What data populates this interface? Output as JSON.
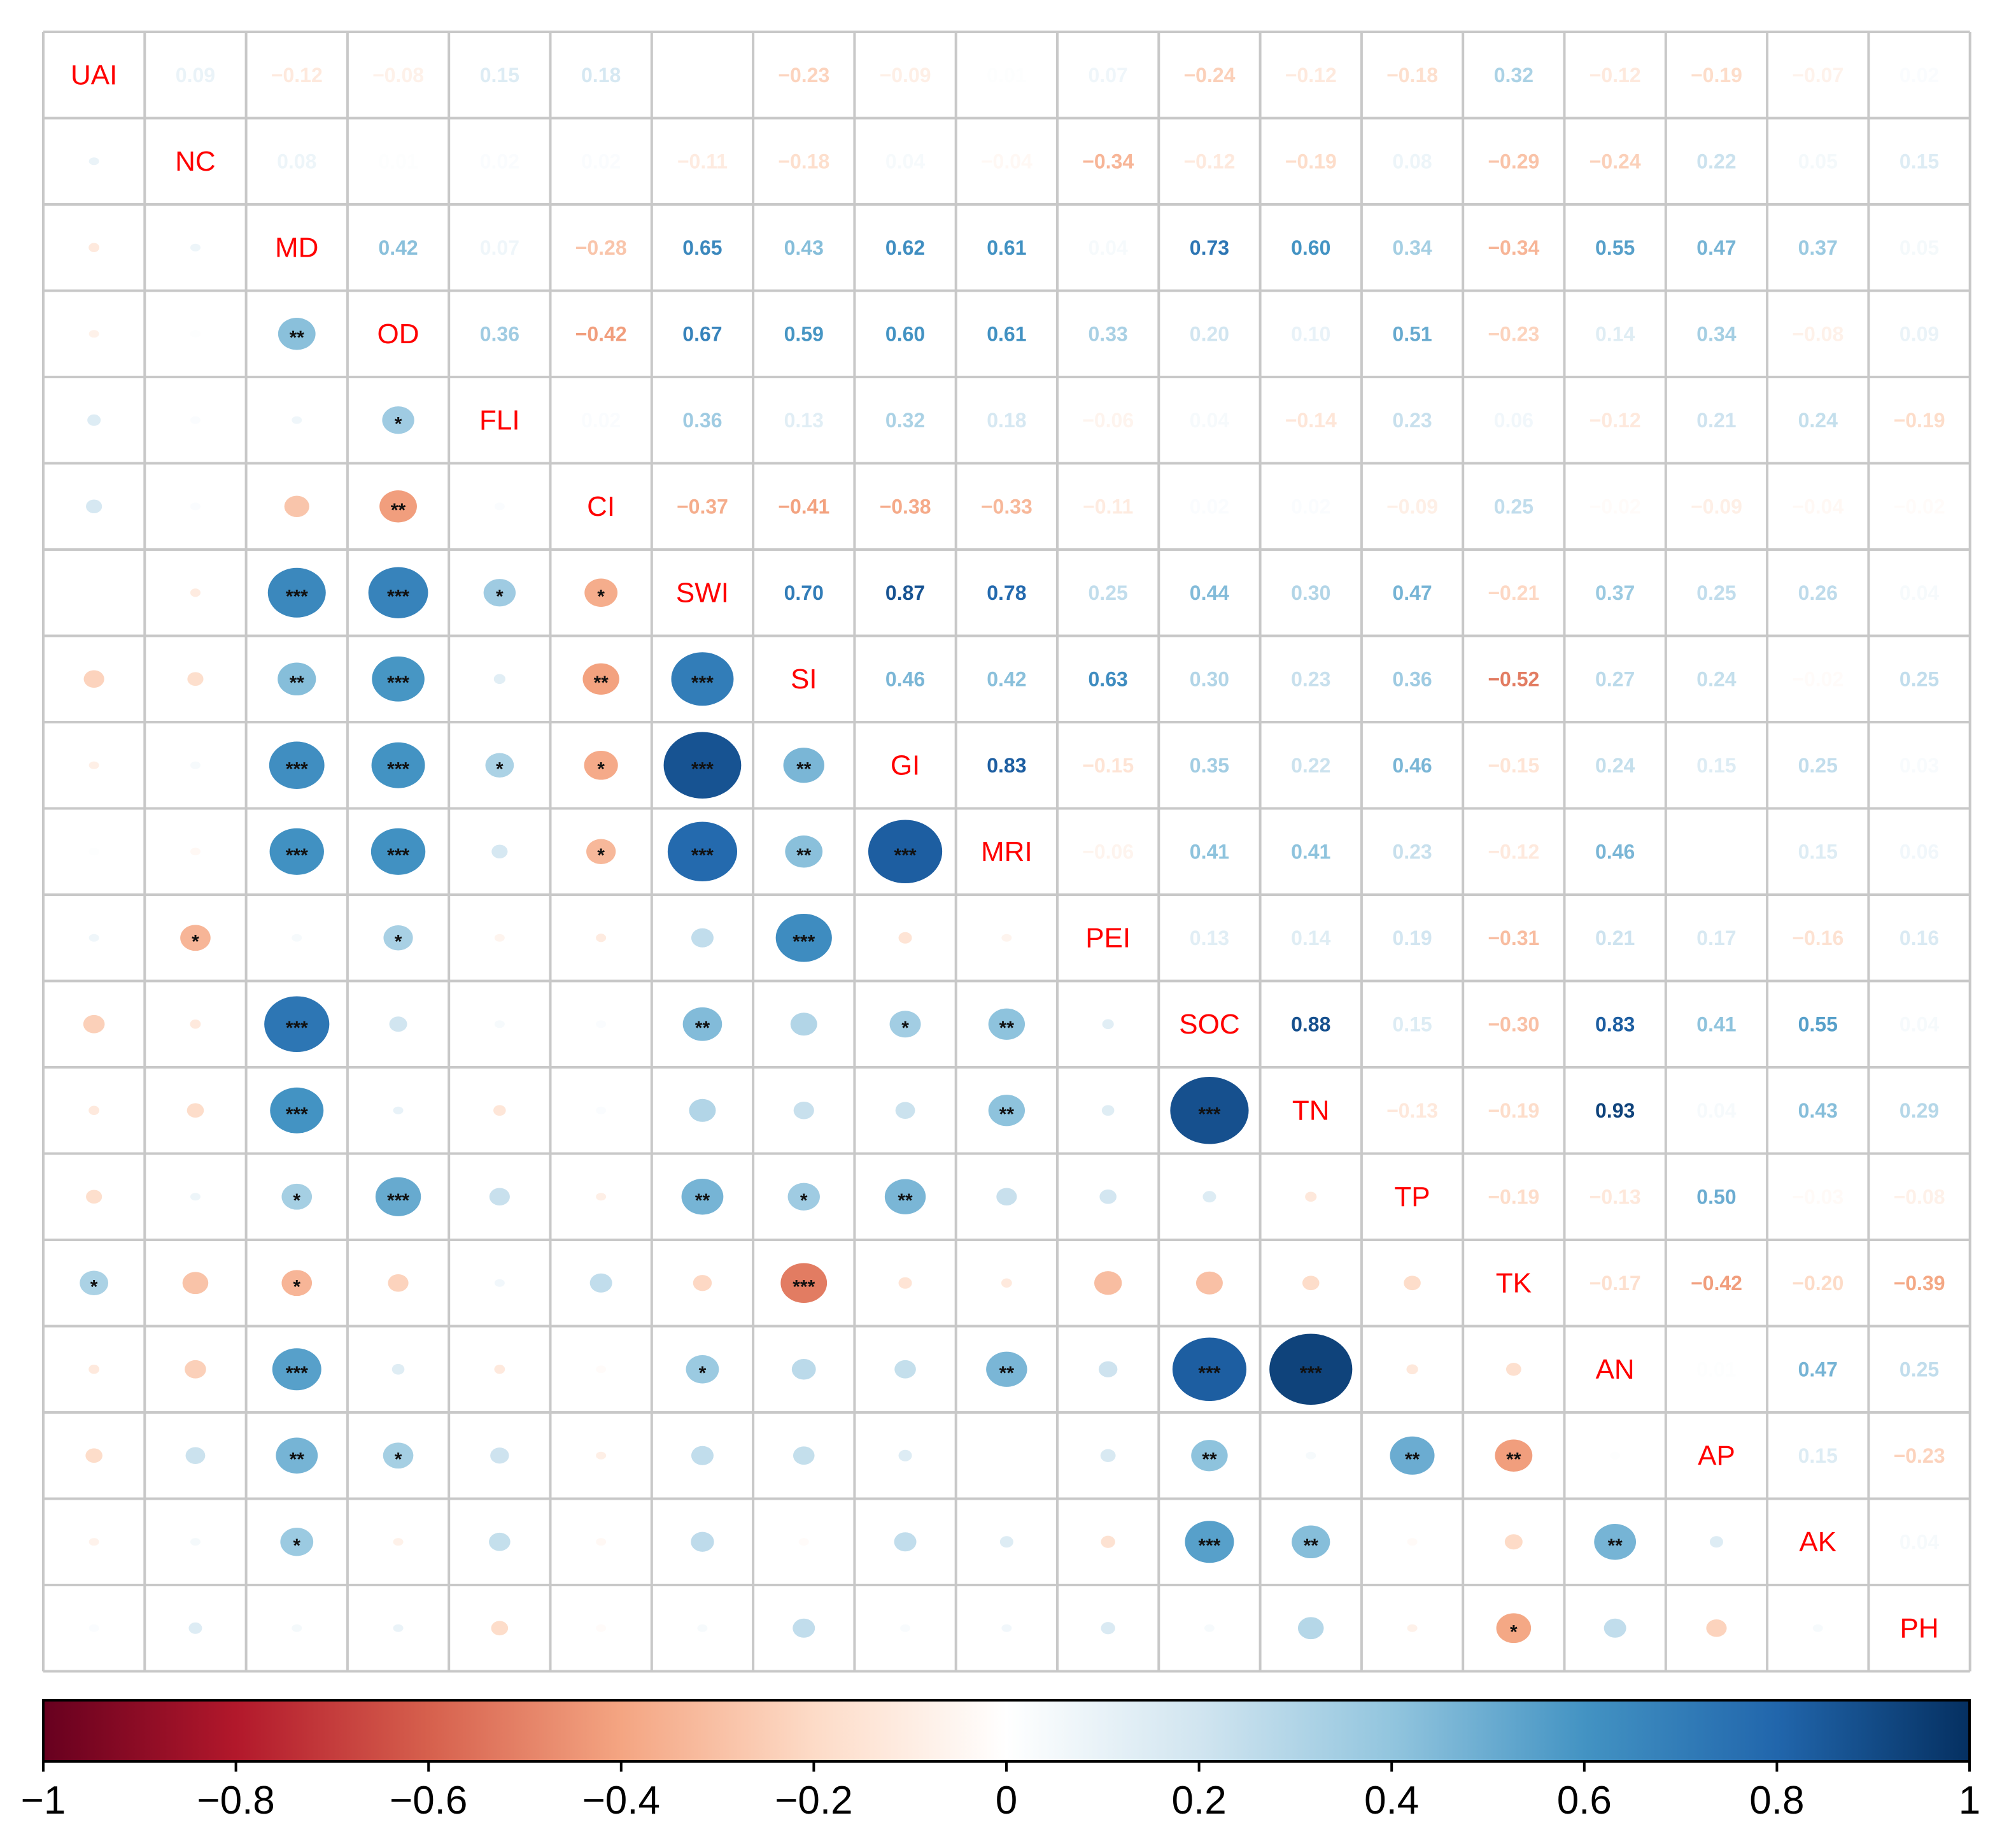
{
  "chart_data": {
    "type": "heatmap",
    "title": "",
    "variables": [
      "UAI",
      "NC",
      "MD",
      "OD",
      "FLI",
      "CI",
      "SWI",
      "SI",
      "GI",
      "MRI",
      "PEI",
      "SOC",
      "TN",
      "TP",
      "TK",
      "AN",
      "AP",
      "AK",
      "PH"
    ],
    "upper_labels": [
      [
        "0.09",
        "−0.12",
        "−0.08",
        "0.15",
        "0.18",
        "",
        "−0.23",
        "−0.09",
        "0.01",
        "0.07",
        "−0.24",
        "−0.12",
        "−0.18",
        "0.32",
        "−0.12",
        "−0.19",
        "−0.07",
        "0.02"
      ],
      [
        "0.08",
        "0.01",
        "0.02",
        "0.02",
        "−0.11",
        "−0.18",
        "0.04",
        "−0.04",
        "−0.34",
        "−0.12",
        "−0.19",
        "0.08",
        "−0.29",
        "−0.24",
        "0.22",
        "0.05",
        "0.15"
      ],
      [
        "0.42",
        "0.07",
        "−0.28",
        "0.65",
        "0.43",
        "0.62",
        "0.61",
        "0.04",
        "0.73",
        "0.60",
        "0.34",
        "−0.34",
        "0.55",
        "0.47",
        "0.37",
        "0.05"
      ],
      [
        "0.36",
        "−0.42",
        "0.67",
        "0.59",
        "0.60",
        "0.61",
        "0.33",
        "0.20",
        "0.10",
        "0.51",
        "−0.23",
        "0.14",
        "0.34",
        "−0.08",
        "0.09"
      ],
      [
        "0.02",
        "0.36",
        "0.13",
        "0.32",
        "0.18",
        "−0.06",
        "0.04",
        "−0.14",
        "0.23",
        "0.06",
        "−0.12",
        "0.21",
        "0.24",
        "−0.19"
      ],
      [
        "−0.37",
        "−0.41",
        "−0.38",
        "−0.33",
        "−0.11",
        "0.02",
        "0.02",
        "−0.09",
        "0.25",
        "−0.02",
        "−0.09",
        "−0.04",
        "−0.02"
      ],
      [
        "0.70",
        "0.87",
        "0.78",
        "0.25",
        "0.44",
        "0.30",
        "0.47",
        "−0.21",
        "0.37",
        "0.25",
        "0.26",
        "0.04"
      ],
      [
        "0.46",
        "0.42",
        "0.63",
        "0.30",
        "0.23",
        "0.36",
        "−0.52",
        "0.27",
        "0.24",
        "−0.02",
        "0.25"
      ],
      [
        "0.83",
        "−0.15",
        "0.35",
        "0.22",
        "0.46",
        "−0.15",
        "0.24",
        "0.15",
        "0.25",
        "0.03"
      ],
      [
        "−0.06",
        "0.41",
        "0.41",
        "0.23",
        "−0.12",
        "0.46",
        "",
        "0.15",
        "0.06"
      ],
      [
        "0.13",
        "0.14",
        "0.19",
        "−0.31",
        "0.21",
        "0.17",
        "−0.16",
        "0.16"
      ],
      [
        "0.88",
        "0.15",
        "−0.30",
        "0.83",
        "0.41",
        "0.55",
        "0.04"
      ],
      [
        "−0.13",
        "−0.19",
        "0.93",
        "0.04",
        "0.43",
        "0.29"
      ],
      [
        "−0.19",
        "−0.13",
        "0.50",
        "−0.03",
        "−0.08"
      ],
      [
        "−0.17",
        "−0.42",
        "−0.20",
        "−0.39"
      ],
      [
        "0.01",
        "0.47",
        "0.25"
      ],
      [
        "0.15",
        "−0.23"
      ],
      [
        "0.04"
      ]
    ],
    "upper_values": [
      [
        0.09,
        -0.12,
        -0.08,
        0.15,
        0.18,
        0,
        -0.23,
        -0.09,
        0.01,
        0.07,
        -0.24,
        -0.12,
        -0.18,
        0.32,
        -0.12,
        -0.19,
        -0.07,
        0.02
      ],
      [
        0.08,
        0.01,
        0.02,
        0.02,
        -0.11,
        -0.18,
        0.04,
        -0.04,
        -0.34,
        -0.12,
        -0.19,
        0.08,
        -0.29,
        -0.24,
        0.22,
        0.05,
        0.15
      ],
      [
        0.42,
        0.07,
        -0.28,
        0.65,
        0.43,
        0.62,
        0.61,
        0.04,
        0.73,
        0.6,
        0.34,
        -0.34,
        0.55,
        0.47,
        0.37,
        0.05
      ],
      [
        0.36,
        -0.42,
        0.67,
        0.59,
        0.6,
        0.61,
        0.33,
        0.2,
        0.1,
        0.51,
        -0.23,
        0.14,
        0.34,
        -0.08,
        0.09
      ],
      [
        0.02,
        0.36,
        0.13,
        0.32,
        0.18,
        -0.06,
        0.04,
        -0.14,
        0.23,
        0.06,
        -0.12,
        0.21,
        0.24,
        -0.19
      ],
      [
        -0.37,
        -0.41,
        -0.38,
        -0.33,
        -0.11,
        0.02,
        0.02,
        -0.09,
        0.25,
        -0.02,
        -0.09,
        -0.04,
        -0.02
      ],
      [
        0.7,
        0.87,
        0.78,
        0.25,
        0.44,
        0.3,
        0.47,
        -0.21,
        0.37,
        0.25,
        0.26,
        0.04
      ],
      [
        0.46,
        0.42,
        0.63,
        0.3,
        0.23,
        0.36,
        -0.52,
        0.27,
        0.24,
        -0.02,
        0.25
      ],
      [
        0.83,
        -0.15,
        0.35,
        0.22,
        0.46,
        -0.15,
        0.24,
        0.15,
        0.25,
        0.03
      ],
      [
        -0.06,
        0.41,
        0.41,
        0.23,
        -0.12,
        0.46,
        0,
        0.15,
        0.06
      ],
      [
        0.13,
        0.14,
        0.19,
        -0.31,
        0.21,
        0.17,
        -0.16,
        0.16
      ],
      [
        0.88,
        0.15,
        -0.3,
        0.83,
        0.41,
        0.55,
        0.04
      ],
      [
        -0.13,
        -0.19,
        0.93,
        0.04,
        0.43,
        0.29
      ],
      [
        -0.19,
        -0.13,
        0.5,
        -0.03,
        -0.08
      ],
      [
        -0.17,
        -0.42,
        -0.2,
        -0.39
      ],
      [
        0.01,
        0.47,
        0.25
      ],
      [
        0.15,
        -0.23
      ],
      [
        0.04
      ]
    ],
    "significance": [
      [],
      [
        ""
      ],
      [
        "",
        ""
      ],
      [
        "",
        "",
        "**"
      ],
      [
        "",
        "",
        "",
        "*"
      ],
      [
        "",
        "",
        "",
        "**",
        ""
      ],
      [
        "",
        "",
        "***",
        "***",
        "*",
        "*"
      ],
      [
        "",
        "",
        "**",
        "***",
        "",
        "**",
        "***"
      ],
      [
        "",
        "",
        "***",
        "***",
        "*",
        "*",
        "***",
        "**"
      ],
      [
        "",
        "",
        "***",
        "***",
        "",
        "*",
        "***",
        "**",
        "***"
      ],
      [
        "",
        "*",
        "",
        "*",
        "",
        "",
        "",
        "***",
        "",
        ""
      ],
      [
        "",
        "",
        "***",
        "",
        "",
        "",
        "**",
        "",
        "*",
        "**",
        ""
      ],
      [
        "",
        "",
        "***",
        "",
        "",
        "",
        "",
        "",
        "",
        "**",
        "",
        "***"
      ],
      [
        "",
        "",
        "*",
        "***",
        "",
        "",
        "**",
        "*",
        "**",
        "",
        "",
        "",
        ""
      ],
      [
        "*",
        "",
        "*",
        "",
        "",
        "",
        "",
        "***",
        "",
        "",
        "",
        "",
        "",
        ""
      ],
      [
        "",
        "",
        "***",
        "",
        "",
        "",
        "*",
        "",
        "",
        "**",
        "",
        "***",
        "***",
        "",
        ""
      ],
      [
        "",
        "",
        "**",
        "*",
        "",
        "",
        "",
        "",
        "",
        "",
        "",
        "**",
        "",
        "**",
        "**",
        ""
      ],
      [
        "",
        "",
        "*",
        "",
        "",
        "",
        "",
        "",
        "",
        "",
        "",
        "***",
        "**",
        "",
        "",
        "**",
        ""
      ],
      [
        "",
        "",
        "",
        "",
        "",
        "",
        "",
        "",
        "",
        "",
        "",
        "",
        "",
        "",
        "*",
        "",
        "",
        ""
      ]
    ],
    "colorbar": {
      "range": [
        -1,
        1
      ],
      "ticks": [
        -1,
        -0.8,
        -0.6,
        -0.4,
        -0.2,
        0,
        0.2,
        0.4,
        0.6,
        0.8,
        1
      ],
      "tick_labels": [
        "−1",
        "−0.8",
        "−0.6",
        "−0.4",
        "−0.2",
        "0",
        "0.2",
        "0.4",
        "0.6",
        "0.8",
        "1"
      ],
      "colors": [
        "#67001F",
        "#B2182B",
        "#D6604D",
        "#F4A582",
        "#FDDBC7",
        "#FFFFFF",
        "#D1E5F0",
        "#92C5DE",
        "#4393C3",
        "#2166AC",
        "#053061"
      ]
    },
    "label_color": "#FF0000",
    "grid_color": "#C8C8C8"
  }
}
